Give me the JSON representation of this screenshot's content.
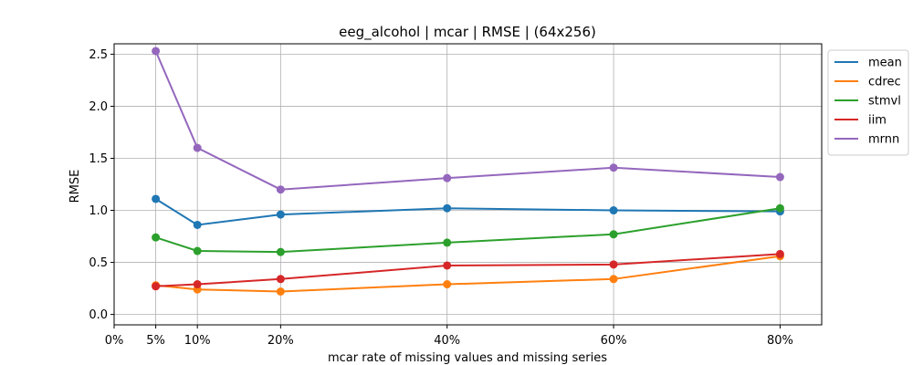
{
  "chart_data": {
    "type": "line",
    "title": "eeg_alcohol | mcar | RMSE | (64x256)",
    "xlabel": "mcar rate of missing values and missing series",
    "ylabel": "RMSE",
    "x": [
      5,
      10,
      20,
      40,
      60,
      80
    ],
    "xticks": [
      0,
      5,
      10,
      20,
      40,
      60,
      80
    ],
    "xtick_labels": [
      "0%",
      "5%",
      "10%",
      "20%",
      "40%",
      "60%",
      "80%"
    ],
    "xlim": [
      0,
      85
    ],
    "ylim": [
      -0.1,
      2.6
    ],
    "yticks": [
      0.0,
      0.5,
      1.0,
      1.5,
      2.0,
      2.5
    ],
    "ytick_labels": [
      "0.0",
      "0.5",
      "1.0",
      "1.5",
      "2.0",
      "2.5"
    ],
    "grid": true,
    "legend_position": "outside-top-right",
    "series": [
      {
        "name": "mean",
        "color": "#1f77b4",
        "values": [
          1.11,
          0.86,
          0.96,
          1.02,
          1.0,
          0.99
        ]
      },
      {
        "name": "cdrec",
        "color": "#ff7f0e",
        "values": [
          0.28,
          0.24,
          0.22,
          0.29,
          0.34,
          0.56
        ]
      },
      {
        "name": "stmvl",
        "color": "#2ca02c",
        "values": [
          0.74,
          0.61,
          0.6,
          0.69,
          0.77,
          1.02
        ]
      },
      {
        "name": "iim",
        "color": "#d62728",
        "values": [
          0.27,
          0.29,
          0.34,
          0.47,
          0.48,
          0.58
        ]
      },
      {
        "name": "mrnn",
        "color": "#9467bd",
        "values": [
          2.53,
          1.6,
          1.2,
          1.31,
          1.41,
          1.32
        ]
      }
    ]
  }
}
